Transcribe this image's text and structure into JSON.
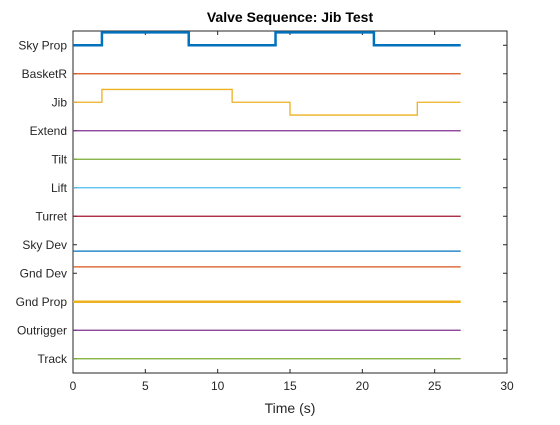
{
  "chart_data": {
    "type": "line",
    "title": "Valve Sequence: Jib Test",
    "xlabel": "Time (s)",
    "ylabel": "",
    "xlim": [
      0,
      30
    ],
    "xticks": [
      0,
      5,
      10,
      15,
      20,
      25,
      30
    ],
    "grid": false,
    "legend": "none",
    "channels": [
      {
        "name": "Sky Prop",
        "color": "#0072BD",
        "bold": true,
        "x": [
          0,
          2,
          2,
          8,
          8,
          14,
          14,
          20.8,
          20.8,
          26.8
        ],
        "y": [
          0,
          0,
          1,
          1,
          0,
          0,
          1,
          1,
          0,
          0
        ]
      },
      {
        "name": "BasketR",
        "color": "#D95319",
        "x": [
          0,
          26.8
        ],
        "y": [
          0,
          0
        ]
      },
      {
        "name": "Jib",
        "color": "#EDB120",
        "x": [
          0,
          2,
          2,
          11,
          11,
          15,
          15,
          23.8,
          23.8,
          26.8
        ],
        "y": [
          0,
          0,
          1,
          1,
          0,
          0,
          -1,
          -1,
          0,
          0
        ]
      },
      {
        "name": "Extend",
        "color": "#7E2F8E",
        "x": [
          0,
          26.8
        ],
        "y": [
          0,
          0
        ]
      },
      {
        "name": "Tilt",
        "color": "#77AC30",
        "x": [
          0,
          26.8
        ],
        "y": [
          0,
          0
        ]
      },
      {
        "name": "Lift",
        "color": "#4DBEEE",
        "x": [
          0,
          26.8
        ],
        "y": [
          0,
          0
        ]
      },
      {
        "name": "Turret",
        "color": "#A2142F",
        "x": [
          0,
          26.8
        ],
        "y": [
          0,
          0
        ]
      },
      {
        "name": "Sky Dev",
        "color": "#0072BD",
        "x": [
          0,
          26.8
        ],
        "y": [
          -0.5,
          -0.5
        ]
      },
      {
        "name": "Gnd Dev",
        "color": "#D95319",
        "x": [
          0,
          26.8
        ],
        "y": [
          0.5,
          0.5
        ]
      },
      {
        "name": "Gnd Prop",
        "color": "#EDB120",
        "bold": true,
        "x": [
          0,
          26.8
        ],
        "y": [
          0,
          0
        ]
      },
      {
        "name": "Outrigger",
        "color": "#7E2F8E",
        "x": [
          0,
          26.8
        ],
        "y": [
          0,
          0
        ]
      },
      {
        "name": "Track",
        "color": "#77AC30",
        "x": [
          0,
          26.8
        ],
        "y": [
          0,
          0
        ]
      }
    ]
  }
}
